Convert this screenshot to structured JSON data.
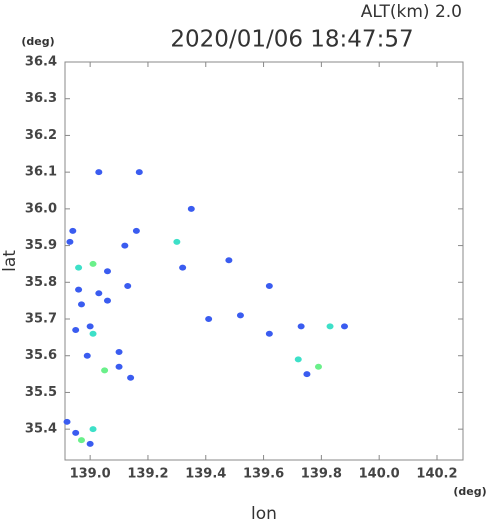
{
  "chart_data": {
    "type": "scatter",
    "title": "2020/01/06 18:47:57",
    "subtitle": "ALT(km) 2.0",
    "x_label": "lon",
    "y_label": "lat",
    "x_unit": "(deg)",
    "y_unit": "(deg)",
    "xlim": [
      138.913,
      140.29
    ],
    "ylim": [
      35.316,
      36.4
    ],
    "xticks": [
      {
        "value": 139,
        "label": "139.0"
      },
      139.2,
      139.4,
      139.6,
      139.8,
      {
        "value": 140,
        "label": "140.0"
      },
      140.2
    ],
    "yticks": [
      35.4,
      35.5,
      35.6,
      35.7,
      35.8,
      35.9,
      {
        "value": 36,
        "label": "36.0"
      },
      36.1,
      36.2,
      36.3,
      36.4
    ],
    "x": [
      138.93,
      138.94,
      138.96,
      139.01,
      138.96,
      139.03,
      139.06,
      138.97,
      139.0,
      139.01,
      138.95,
      138.99,
      139.05,
      139.1,
      139.1,
      139.14,
      138.92,
      138.95,
      138.97,
      139.01,
      139.0,
      139.03,
      139.17,
      139.12,
      139.16,
      139.3,
      139.32,
      139.35,
      139.48,
      139.41,
      139.52,
      139.62,
      139.62,
      139.73,
      139.83,
      139.88,
      139.72,
      139.79,
      139.75,
      139.06,
      139.13
    ],
    "values": [
      35.91,
      35.94,
      35.84,
      35.85,
      35.78,
      35.77,
      35.75,
      35.74,
      35.68,
      35.66,
      35.67,
      35.6,
      35.56,
      35.61,
      35.57,
      35.54,
      35.42,
      35.39,
      35.37,
      35.4,
      35.36,
      36.1,
      36.1,
      35.9,
      35.94,
      35.91,
      35.84,
      36.0,
      35.86,
      35.7,
      35.71,
      35.79,
      35.66,
      35.68,
      35.68,
      35.68,
      35.59,
      35.57,
      35.55,
      35.83,
      35.79
    ],
    "colors": [
      "#3a5cf0",
      "#3a5cf0",
      "#3de0c8",
      "#6af08a",
      "#3a5cf0",
      "#3a5cf0",
      "#3a5cf0",
      "#3a5cf0",
      "#3a5cf0",
      "#3de0c8",
      "#3a5cf0",
      "#3a5cf0",
      "#6af08a",
      "#3a5cf0",
      "#3a5cf0",
      "#3a5cf0",
      "#3a5cf0",
      "#3a5cf0",
      "#6af08a",
      "#3de0c8",
      "#3a5cf0",
      "#3a5cf0",
      "#3a5cf0",
      "#3a5cf0",
      "#3a5cf0",
      "#3de0c8",
      "#3a5cf0",
      "#3a5cf0",
      "#3a5cf0",
      "#3a5cf0",
      "#3a5cf0",
      "#3a5cf0",
      "#3a5cf0",
      "#3a5cf0",
      "#3de0c8",
      "#3a5cf0",
      "#3de0c8",
      "#6af08a",
      "#3a5cf0",
      "#3a5cf0",
      "#3a5cf0"
    ]
  }
}
